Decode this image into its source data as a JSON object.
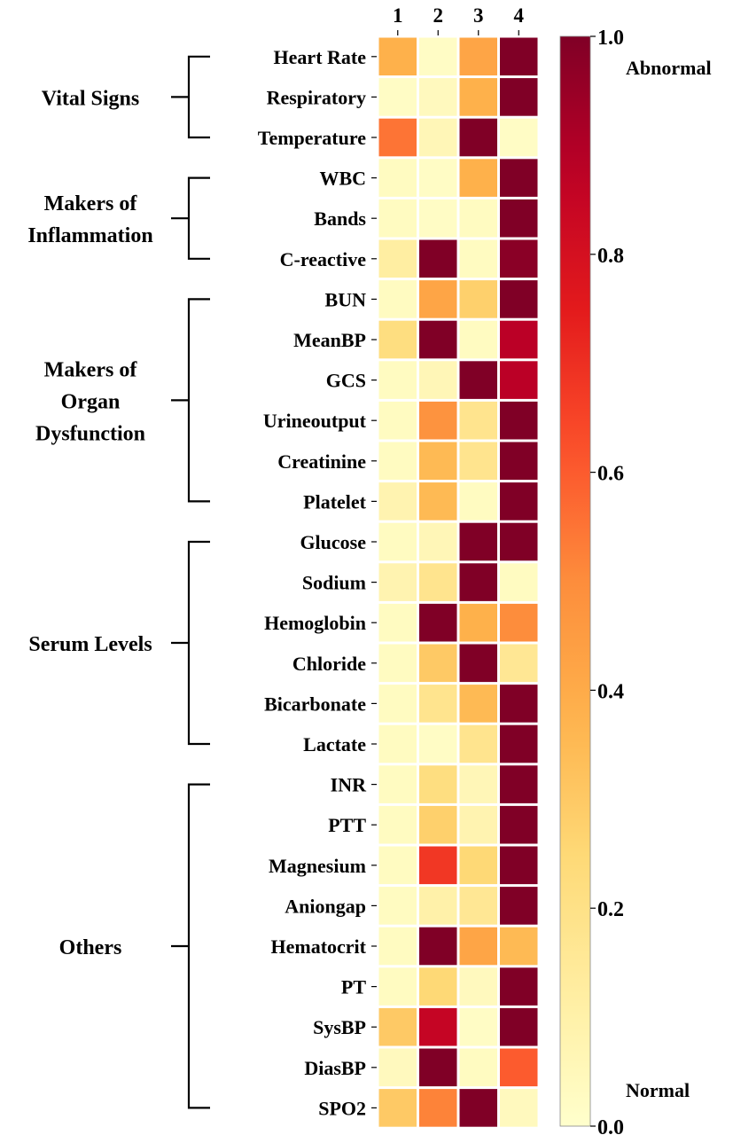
{
  "chart_data": {
    "type": "heatmap",
    "columns": [
      "1",
      "2",
      "3",
      "4"
    ],
    "rows": [
      "Heart Rate",
      "Respiratory",
      "Temperature",
      "WBC",
      "Bands",
      "C-reactive",
      "BUN",
      "MeanBP",
      "GCS",
      "Urineoutput",
      "Creatinine",
      "Platelet",
      "Glucose",
      "Sodium",
      "Hemoglobin",
      "Chloride",
      "Bicarbonate",
      "Lactate",
      "INR",
      "PTT",
      "Magnesium",
      "Aniongap",
      "Hematocrit",
      "PT",
      "SysBP",
      "DiasBP",
      "SPO2"
    ],
    "values": [
      [
        0.38,
        0.02,
        0.42,
        1.0
      ],
      [
        0.02,
        0.04,
        0.38,
        1.0
      ],
      [
        0.55,
        0.06,
        1.0,
        0.02
      ],
      [
        0.03,
        0.02,
        0.38,
        1.0
      ],
      [
        0.03,
        0.02,
        0.03,
        1.0
      ],
      [
        0.12,
        1.0,
        0.03,
        0.98
      ],
      [
        0.03,
        0.42,
        0.28,
        1.0
      ],
      [
        0.22,
        1.0,
        0.03,
        0.88
      ],
      [
        0.03,
        0.06,
        1.0,
        0.88
      ],
      [
        0.03,
        0.48,
        0.18,
        1.0
      ],
      [
        0.03,
        0.35,
        0.18,
        1.0
      ],
      [
        0.08,
        0.35,
        0.03,
        1.0
      ],
      [
        0.03,
        0.06,
        1.0,
        1.0
      ],
      [
        0.08,
        0.18,
        1.0,
        0.03
      ],
      [
        0.03,
        1.0,
        0.38,
        0.5
      ],
      [
        0.03,
        0.3,
        1.0,
        0.16
      ],
      [
        0.03,
        0.18,
        0.35,
        1.0
      ],
      [
        0.03,
        0.02,
        0.18,
        1.0
      ],
      [
        0.03,
        0.22,
        0.06,
        1.0
      ],
      [
        0.03,
        0.28,
        0.08,
        1.0
      ],
      [
        0.03,
        0.68,
        0.25,
        1.0
      ],
      [
        0.03,
        0.1,
        0.16,
        1.0
      ],
      [
        0.03,
        1.0,
        0.42,
        0.35
      ],
      [
        0.03,
        0.25,
        0.04,
        1.0
      ],
      [
        0.3,
        0.85,
        0.02,
        1.0
      ],
      [
        0.04,
        1.0,
        0.03,
        0.6
      ],
      [
        0.3,
        0.52,
        1.0,
        0.04
      ]
    ],
    "groups": [
      {
        "label": [
          "Vital Signs"
        ],
        "start": 0,
        "end": 2
      },
      {
        "label": [
          "Makers of",
          "Inflammation"
        ],
        "start": 3,
        "end": 5
      },
      {
        "label": [
          "Makers of",
          "Organ",
          "Dysfunction"
        ],
        "start": 6,
        "end": 11
      },
      {
        "label": [
          "Serum Levels"
        ],
        "start": 12,
        "end": 17
      },
      {
        "label": [
          "Others"
        ],
        "start": 18,
        "end": 26
      }
    ],
    "colorbar": {
      "min": 0.0,
      "max": 1.0,
      "ticks": [
        "0.0",
        "0.2",
        "0.4",
        "0.6",
        "0.8",
        "1.0"
      ],
      "top_label": "Abnormal",
      "bottom_label": "Normal",
      "colormap": "YlOrRd"
    }
  }
}
